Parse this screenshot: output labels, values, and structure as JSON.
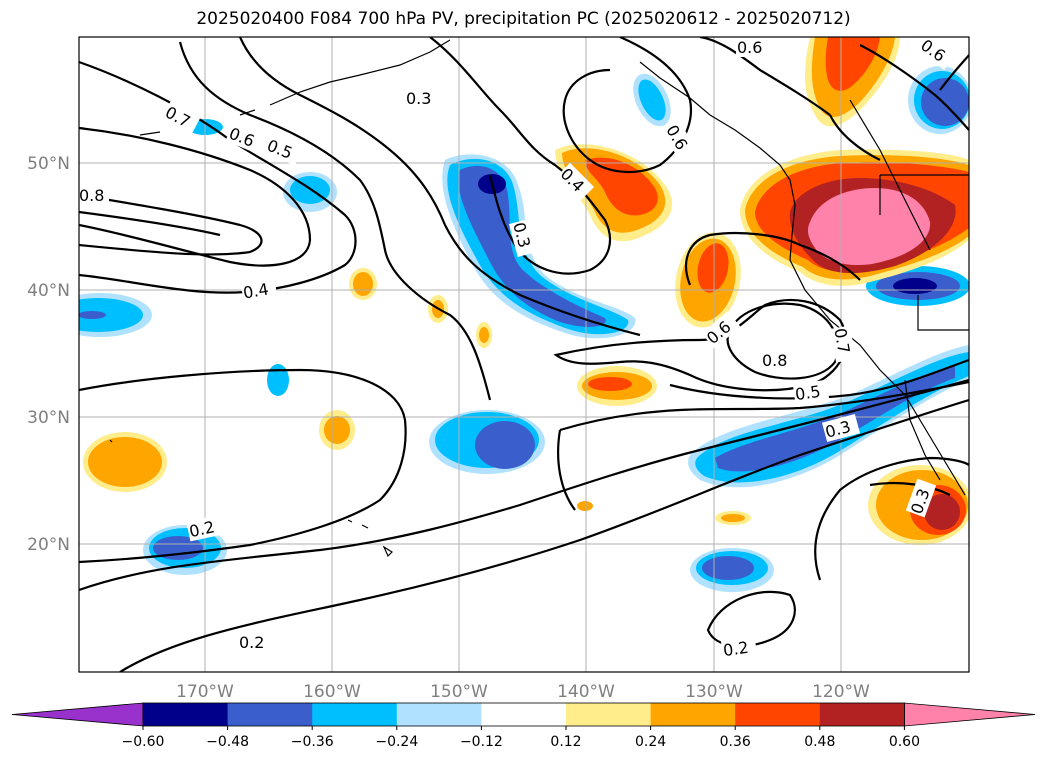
{
  "title": "2025020400 F084 700 hPa PV, precipitation PC (2025020612 - 2025020712)",
  "latitude_labels": [
    "50°N",
    "40°N",
    "30°N",
    "20°N"
  ],
  "longitude_labels": [
    "170°W",
    "160°W",
    "150°W",
    "140°W",
    "130°W",
    "120°W"
  ],
  "contour_labels": [
    "0.6",
    "0.6",
    "0.3",
    "0.7",
    "0.6",
    "0.5",
    "0.8",
    "0.4",
    "0.6",
    "0.4",
    "0.3",
    "0.6",
    "0.7",
    "0.8",
    "0.5",
    "0.3",
    "0.3",
    "0.2",
    "0.2",
    "0.2"
  ],
  "colorbar": {
    "ticks": [
      "−0.60",
      "−0.48",
      "−0.36",
      "−0.24",
      "−0.12",
      "0.12",
      "0.24",
      "0.36",
      "0.48",
      "0.60"
    ],
    "colors": [
      "#9932cc",
      "#00008b",
      "#3a5fcd",
      "#00bfff",
      "#b0e2ff",
      "#ffffff",
      "#ffec8b",
      "#ffa500",
      "#ff4500",
      "#b22222",
      "#ff82ab"
    ]
  },
  "colors": {
    "neg_light": "#b0e2ff",
    "neg_mid": "#00bfff",
    "neg_strong": "#3a5fcd",
    "neg_darkest": "#00008b",
    "pos_light": "#ffec8b",
    "pos_mid": "#ffa500",
    "pos_strong": "#ff4500",
    "pos_stronger": "#b22222",
    "pos_max": "#ff82ab",
    "grid": "#b0b0b0",
    "axis_label": "#7f7f7f"
  }
}
